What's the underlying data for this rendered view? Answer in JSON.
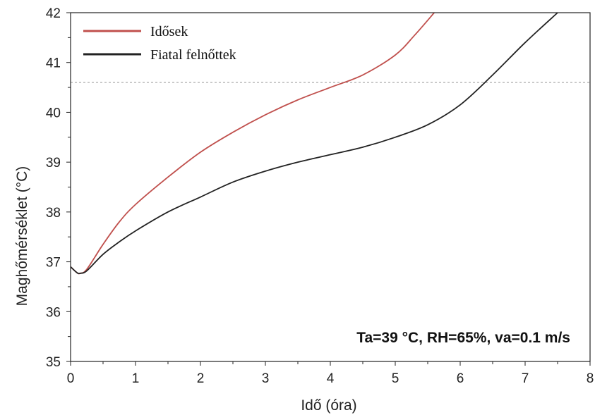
{
  "chart_data": {
    "type": "line",
    "xlabel": "Idő (óra)",
    "ylabel": "Maghőmérséklet (°C)",
    "xlim": [
      0,
      8
    ],
    "ylim": [
      35,
      42
    ],
    "xticks": [
      "0",
      "1",
      "2",
      "3",
      "4",
      "5",
      "6",
      "7",
      "8"
    ],
    "yticks": [
      "35",
      "36",
      "37",
      "38",
      "39",
      "40",
      "41",
      "42"
    ],
    "grid": false,
    "legend_position": "top-left",
    "reference_line": {
      "y": 40.6,
      "style": "dotted"
    },
    "annotation": "Ta=39 °C, RH=65%, va=0.1 m/s",
    "series": [
      {
        "name": "Idősek",
        "color": "#c0504d",
        "x": [
          0,
          0.1,
          0.15,
          0.25,
          0.5,
          0.75,
          1.0,
          1.5,
          2.0,
          2.5,
          3.0,
          3.5,
          4.0,
          4.5,
          5.0,
          5.3,
          5.6
        ],
        "y": [
          36.9,
          36.78,
          36.77,
          36.85,
          37.35,
          37.8,
          38.15,
          38.7,
          39.2,
          39.6,
          39.95,
          40.25,
          40.5,
          40.75,
          41.15,
          41.55,
          42.0
        ]
      },
      {
        "name": "Fiatal felnőttek",
        "color": "#222222",
        "x": [
          0,
          0.1,
          0.15,
          0.25,
          0.5,
          0.75,
          1.0,
          1.5,
          2.0,
          2.5,
          3.0,
          3.5,
          4.0,
          4.5,
          5.0,
          5.5,
          6.0,
          6.5,
          7.0,
          7.5
        ],
        "y": [
          36.9,
          36.78,
          36.77,
          36.82,
          37.15,
          37.4,
          37.62,
          38.0,
          38.3,
          38.6,
          38.82,
          39.0,
          39.15,
          39.3,
          39.5,
          39.75,
          40.15,
          40.75,
          41.4,
          42.0
        ]
      }
    ]
  }
}
